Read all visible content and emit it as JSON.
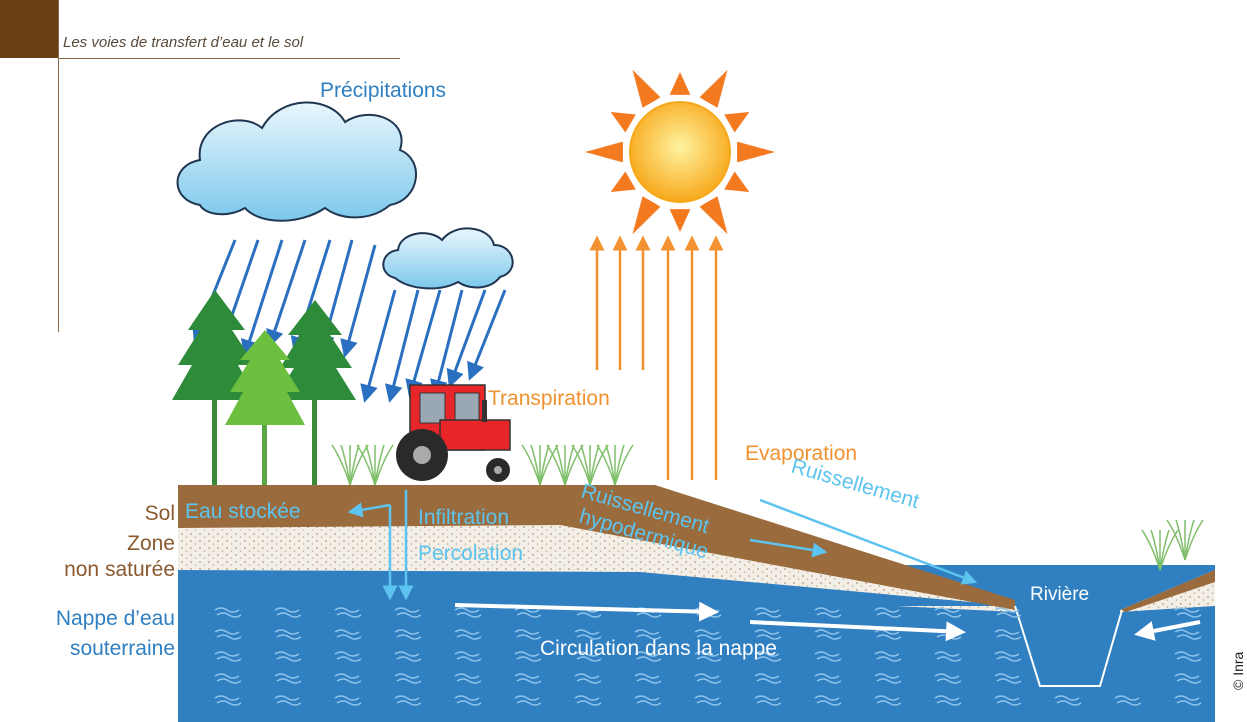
{
  "header": {
    "title": "Les voies de transfert d’eau et le sol"
  },
  "labels": {
    "precipitations": "Précipitations",
    "transpiration": "Transpiration",
    "evaporation": "Evaporation",
    "sol": "Sol",
    "zone": "Zone",
    "non_saturee": "non saturée",
    "nappe_1": "Nappe d’eau",
    "nappe_2": "souterraine",
    "eau_stockee": "Eau stockée",
    "infiltration": "Infiltration",
    "percolation": "Percolation",
    "ruissellement_hypo_1": "Ruissellement",
    "ruissellement_hypo_2": "hypodermique",
    "ruissellement": "Ruissellement",
    "riviere": "Rivière",
    "circulation": "Circulation dans la nappe"
  },
  "credit": "© Inra"
}
